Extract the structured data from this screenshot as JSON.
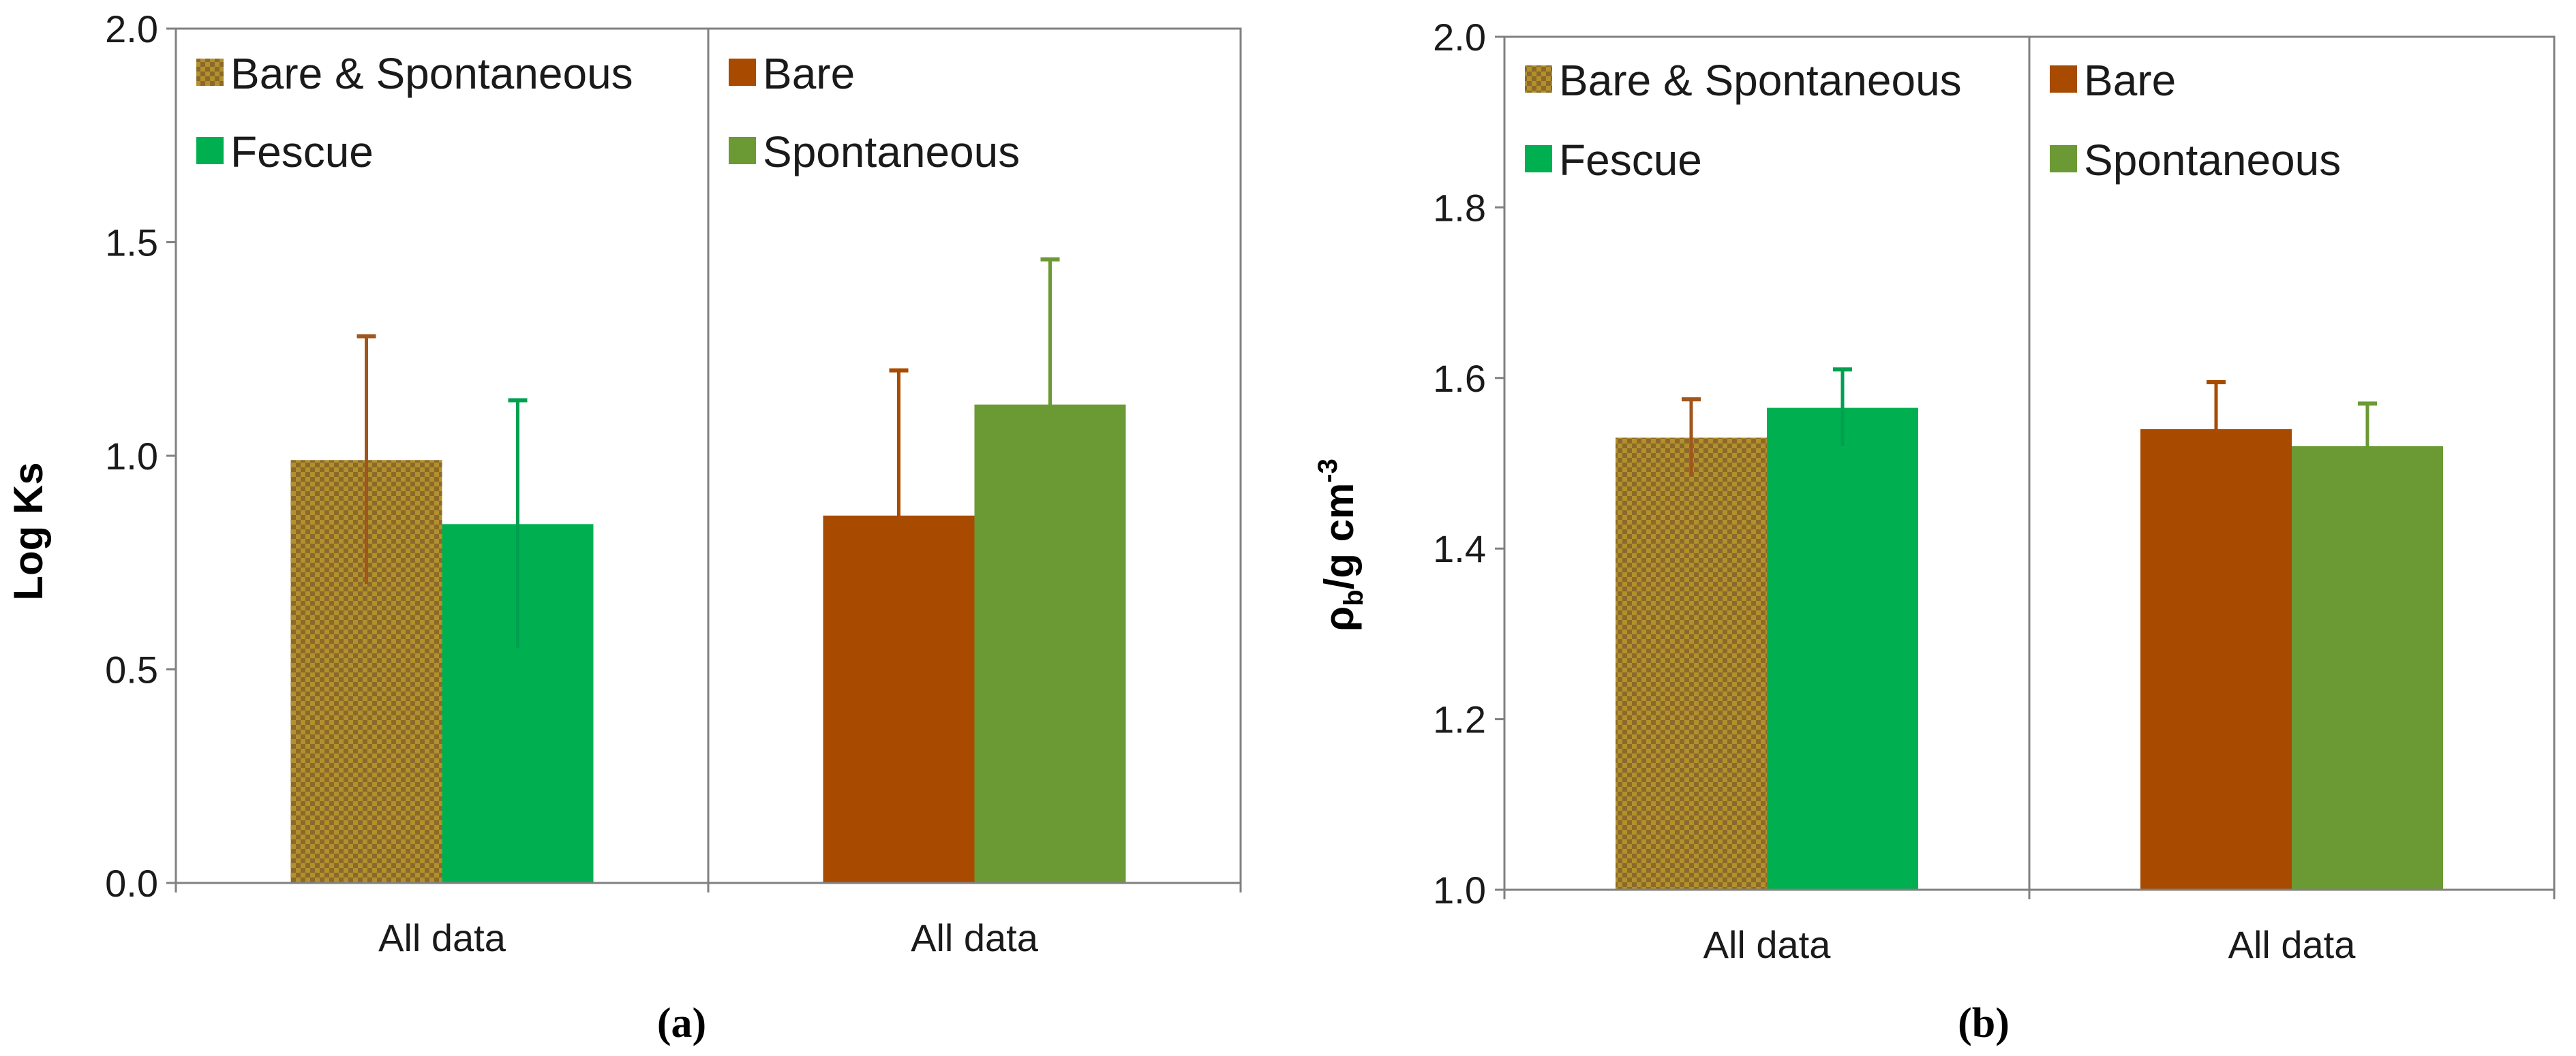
{
  "colors": {
    "bare_spontaneous": "#8a6a2a",
    "bare_spontaneous_check": "#b4902c",
    "fescue": "#00b050",
    "bare": "#a84a00",
    "spontaneous": "#6b9a34",
    "axis": "#808080",
    "err_bare_spontaneous": "#a0561c",
    "err_fescue": "#00a050",
    "err_bare": "#a84a00",
    "err_spontaneous": "#6b9a34"
  },
  "chart_data": [
    {
      "type": "bar",
      "panel_label": "(a)",
      "ylabel": "Log Ks",
      "ylim": [
        0,
        2
      ],
      "yticks": [
        "0.0",
        "0.5",
        "1.0",
        "1.5",
        "2.0"
      ],
      "ytick_values": [
        0,
        0.5,
        1.0,
        1.5,
        2.0
      ],
      "groups": [
        {
          "category": "All data",
          "legend": [
            "Bare & Spontaneous",
            "Fescue"
          ],
          "series": [
            {
              "name": "Bare & Spontaneous",
              "value": 0.99,
              "error": 0.29,
              "color_key": "bare_spontaneous",
              "pattern": "checker",
              "err_color_key": "err_bare_spontaneous"
            },
            {
              "name": "Fescue",
              "value": 0.84,
              "error": 0.29,
              "color_key": "fescue",
              "err_color_key": "err_fescue"
            }
          ]
        },
        {
          "category": "All data",
          "legend": [
            "Bare",
            "Spontaneous"
          ],
          "series": [
            {
              "name": "Bare",
              "value": 0.86,
              "error": 0.34,
              "color_key": "bare",
              "err_color_key": "err_bare"
            },
            {
              "name": "Spontaneous",
              "value": 1.12,
              "error": 0.34,
              "color_key": "spontaneous",
              "err_color_key": "err_spontaneous"
            }
          ]
        }
      ]
    },
    {
      "type": "bar",
      "panel_label": "(b)",
      "ylabel_main": "ρ",
      "ylabel_sub": "b",
      "ylabel_rest": "/g cm",
      "ylabel_sup": "-3",
      "ylim": [
        1.0,
        2.0
      ],
      "yticks": [
        "1.0",
        "1.2",
        "1.4",
        "1.6",
        "1.8",
        "2.0"
      ],
      "ytick_values": [
        1.0,
        1.2,
        1.4,
        1.6,
        1.8,
        2.0
      ],
      "groups": [
        {
          "category": "All data",
          "legend": [
            "Bare & Spontaneous",
            "Fescue"
          ],
          "series": [
            {
              "name": "Bare & Spontaneous",
              "value": 1.53,
              "error": 0.045,
              "color_key": "bare_spontaneous",
              "pattern": "checker",
              "err_color_key": "err_bare_spontaneous"
            },
            {
              "name": "Fescue",
              "value": 1.565,
              "error": 0.045,
              "color_key": "fescue",
              "err_color_key": "err_fescue"
            }
          ]
        },
        {
          "category": "All data",
          "legend": [
            "Bare",
            "Spontaneous"
          ],
          "series": [
            {
              "name": "Bare",
              "value": 1.54,
              "error": 0.055,
              "color_key": "bare",
              "err_color_key": "err_bare"
            },
            {
              "name": "Spontaneous",
              "value": 1.52,
              "error": 0.05,
              "color_key": "spontaneous",
              "err_color_key": "err_spontaneous"
            }
          ]
        }
      ]
    }
  ]
}
